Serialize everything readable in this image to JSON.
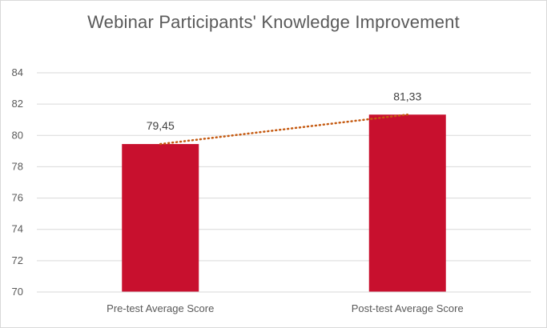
{
  "chart_data": {
    "type": "bar",
    "title": "Webinar Participants' Knowledge Improvement",
    "categories": [
      "Pre-test Average Score",
      "Post-test Average Score"
    ],
    "values": [
      79.45,
      81.33
    ],
    "data_labels": [
      "79,45",
      "81,33"
    ],
    "ylim": [
      70,
      84
    ],
    "yticks": [
      70,
      72,
      74,
      76,
      78,
      80,
      82,
      84
    ],
    "ytick_labels": [
      "70",
      "72",
      "74",
      "76",
      "78",
      "80",
      "82",
      "84"
    ],
    "grid": true,
    "legend": "none",
    "trendline": "linear",
    "colors": {
      "bar": "#c8102e",
      "trendline": "#c55a11",
      "grid": "#d9d9d9",
      "text": "#595959"
    }
  }
}
